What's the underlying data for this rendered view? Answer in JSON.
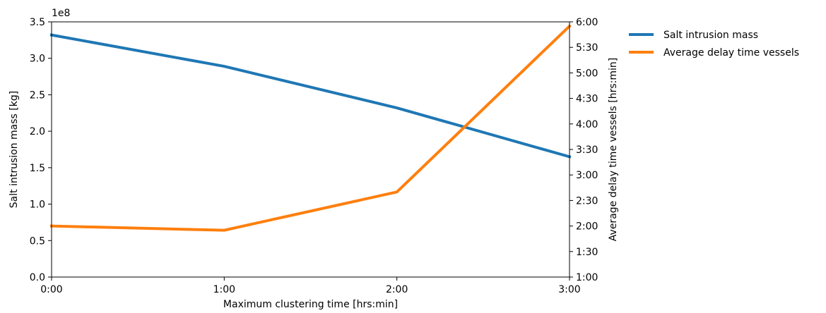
{
  "chart_data": {
    "type": "line",
    "x": [
      "0:00",
      "1:00",
      "2:00",
      "3:00"
    ],
    "xlabel": "Maximum clustering time [hrs:min]",
    "xlim": [
      "0:00",
      "3:00"
    ],
    "left_axis": {
      "label": "Salt intrusion mass [kg]",
      "offset_text": "1e8",
      "ylim": [
        0,
        3.5
      ],
      "ticks": [
        "0.0",
        "0.5",
        "1.0",
        "1.5",
        "2.0",
        "2.5",
        "3.0",
        "3.5"
      ]
    },
    "right_axis": {
      "label": "Average delay time vessels [hrs:min]",
      "ylim": [
        "1:00",
        "6:00"
      ],
      "ticks": [
        "1:00",
        "1:30",
        "2:00",
        "2:30",
        "3:00",
        "3:30",
        "4:00",
        "4:30",
        "5:00",
        "5:30",
        "6:00"
      ]
    },
    "series": [
      {
        "name": "Salt intrusion mass",
        "axis": "left",
        "color": "#1f77b4",
        "values": [
          332000000,
          289000000,
          232000000,
          165000000
        ]
      },
      {
        "name": "Average delay time vessels",
        "axis": "right",
        "color": "#ff7f0e",
        "values": [
          "2:00",
          "1:55",
          "2:40",
          "5:55"
        ]
      }
    ],
    "legend_position": "outside-right-top",
    "grid": false
  }
}
